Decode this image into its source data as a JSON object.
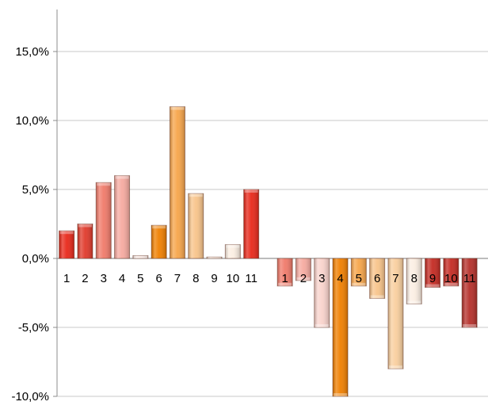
{
  "chart_data": {
    "type": "bar",
    "title": "",
    "xlabel": "",
    "ylabel": "",
    "ylim": [
      -10,
      17.5
    ],
    "yticks": [
      {
        "value": -10,
        "label": "-10,0%"
      },
      {
        "value": -5,
        "label": "-5,0%"
      },
      {
        "value": 0,
        "label": "0,0%"
      },
      {
        "value": 5,
        "label": "5,0%"
      },
      {
        "value": 10,
        "label": "10,0%"
      },
      {
        "value": 15,
        "label": "15,0%"
      }
    ],
    "grid": true,
    "groups": [
      {
        "categories": [
          "1",
          "2",
          "3",
          "4",
          "5",
          "6",
          "7",
          "8",
          "9",
          "10",
          "11"
        ],
        "values": [
          2.0,
          2.5,
          5.5,
          6.0,
          0.2,
          2.4,
          11.0,
          4.7,
          0.1,
          1.0,
          5.0
        ],
        "colors": [
          "#e8281a",
          "#e03a2b",
          "#f07a6a",
          "#f6aaa0",
          "#f3ded8",
          "#f07f00",
          "#f7a54a",
          "#f8c48a",
          "#fbe6d4",
          "#fbeee2",
          "#e8281a"
        ]
      },
      {
        "categories": [
          "1",
          "2",
          "3",
          "4",
          "5",
          "6",
          "7",
          "8",
          "9",
          "10",
          "11"
        ],
        "values": [
          -2.0,
          -1.6,
          -5.0,
          -10.0,
          -2.0,
          -2.9,
          -8.0,
          -3.3,
          -2.1,
          -2.0,
          -5.0
        ],
        "colors": [
          "#f07a6a",
          "#f6aaa0",
          "#f9d3cc",
          "#f07f00",
          "#f7a54a",
          "#f8c48a",
          "#f9cf9e",
          "#fbeee2",
          "#c42a22",
          "#c42a22",
          "#b5302a"
        ]
      }
    ]
  }
}
